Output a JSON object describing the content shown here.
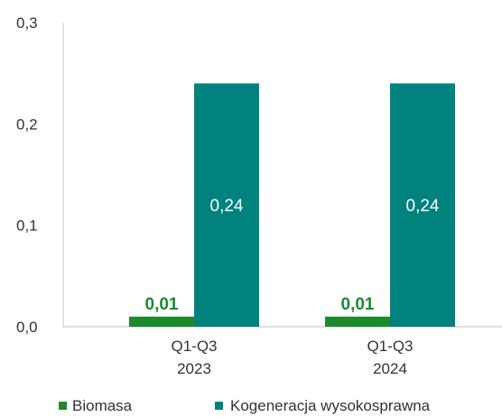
{
  "chart_data": {
    "type": "bar",
    "categories": [
      [
        "Q1-Q3",
        "2023"
      ],
      [
        "Q1-Q3",
        "2024"
      ]
    ],
    "series": [
      {
        "name": "Biomasa",
        "values": [
          0.01,
          0.01
        ],
        "labels": [
          "0,01",
          "0,01"
        ],
        "color": "#1e8a2e",
        "label_color": "#1e8a2e"
      },
      {
        "name": "Kogeneracja wysokosprawna",
        "values": [
          0.24,
          0.24
        ],
        "labels": [
          "0,24",
          "0,24"
        ],
        "color": "#00827e",
        "label_color": "#ffffff"
      }
    ],
    "ylim": [
      0,
      0.3
    ],
    "yticks": [
      {
        "value": 0.0,
        "label": "0,0"
      },
      {
        "value": 0.1,
        "label": "0,1"
      },
      {
        "value": 0.2,
        "label": "0,2"
      },
      {
        "value": 0.3,
        "label": "0,3"
      }
    ],
    "title": "",
    "xlabel": "",
    "ylabel": "",
    "grid": false,
    "legend_position": "bottom"
  }
}
